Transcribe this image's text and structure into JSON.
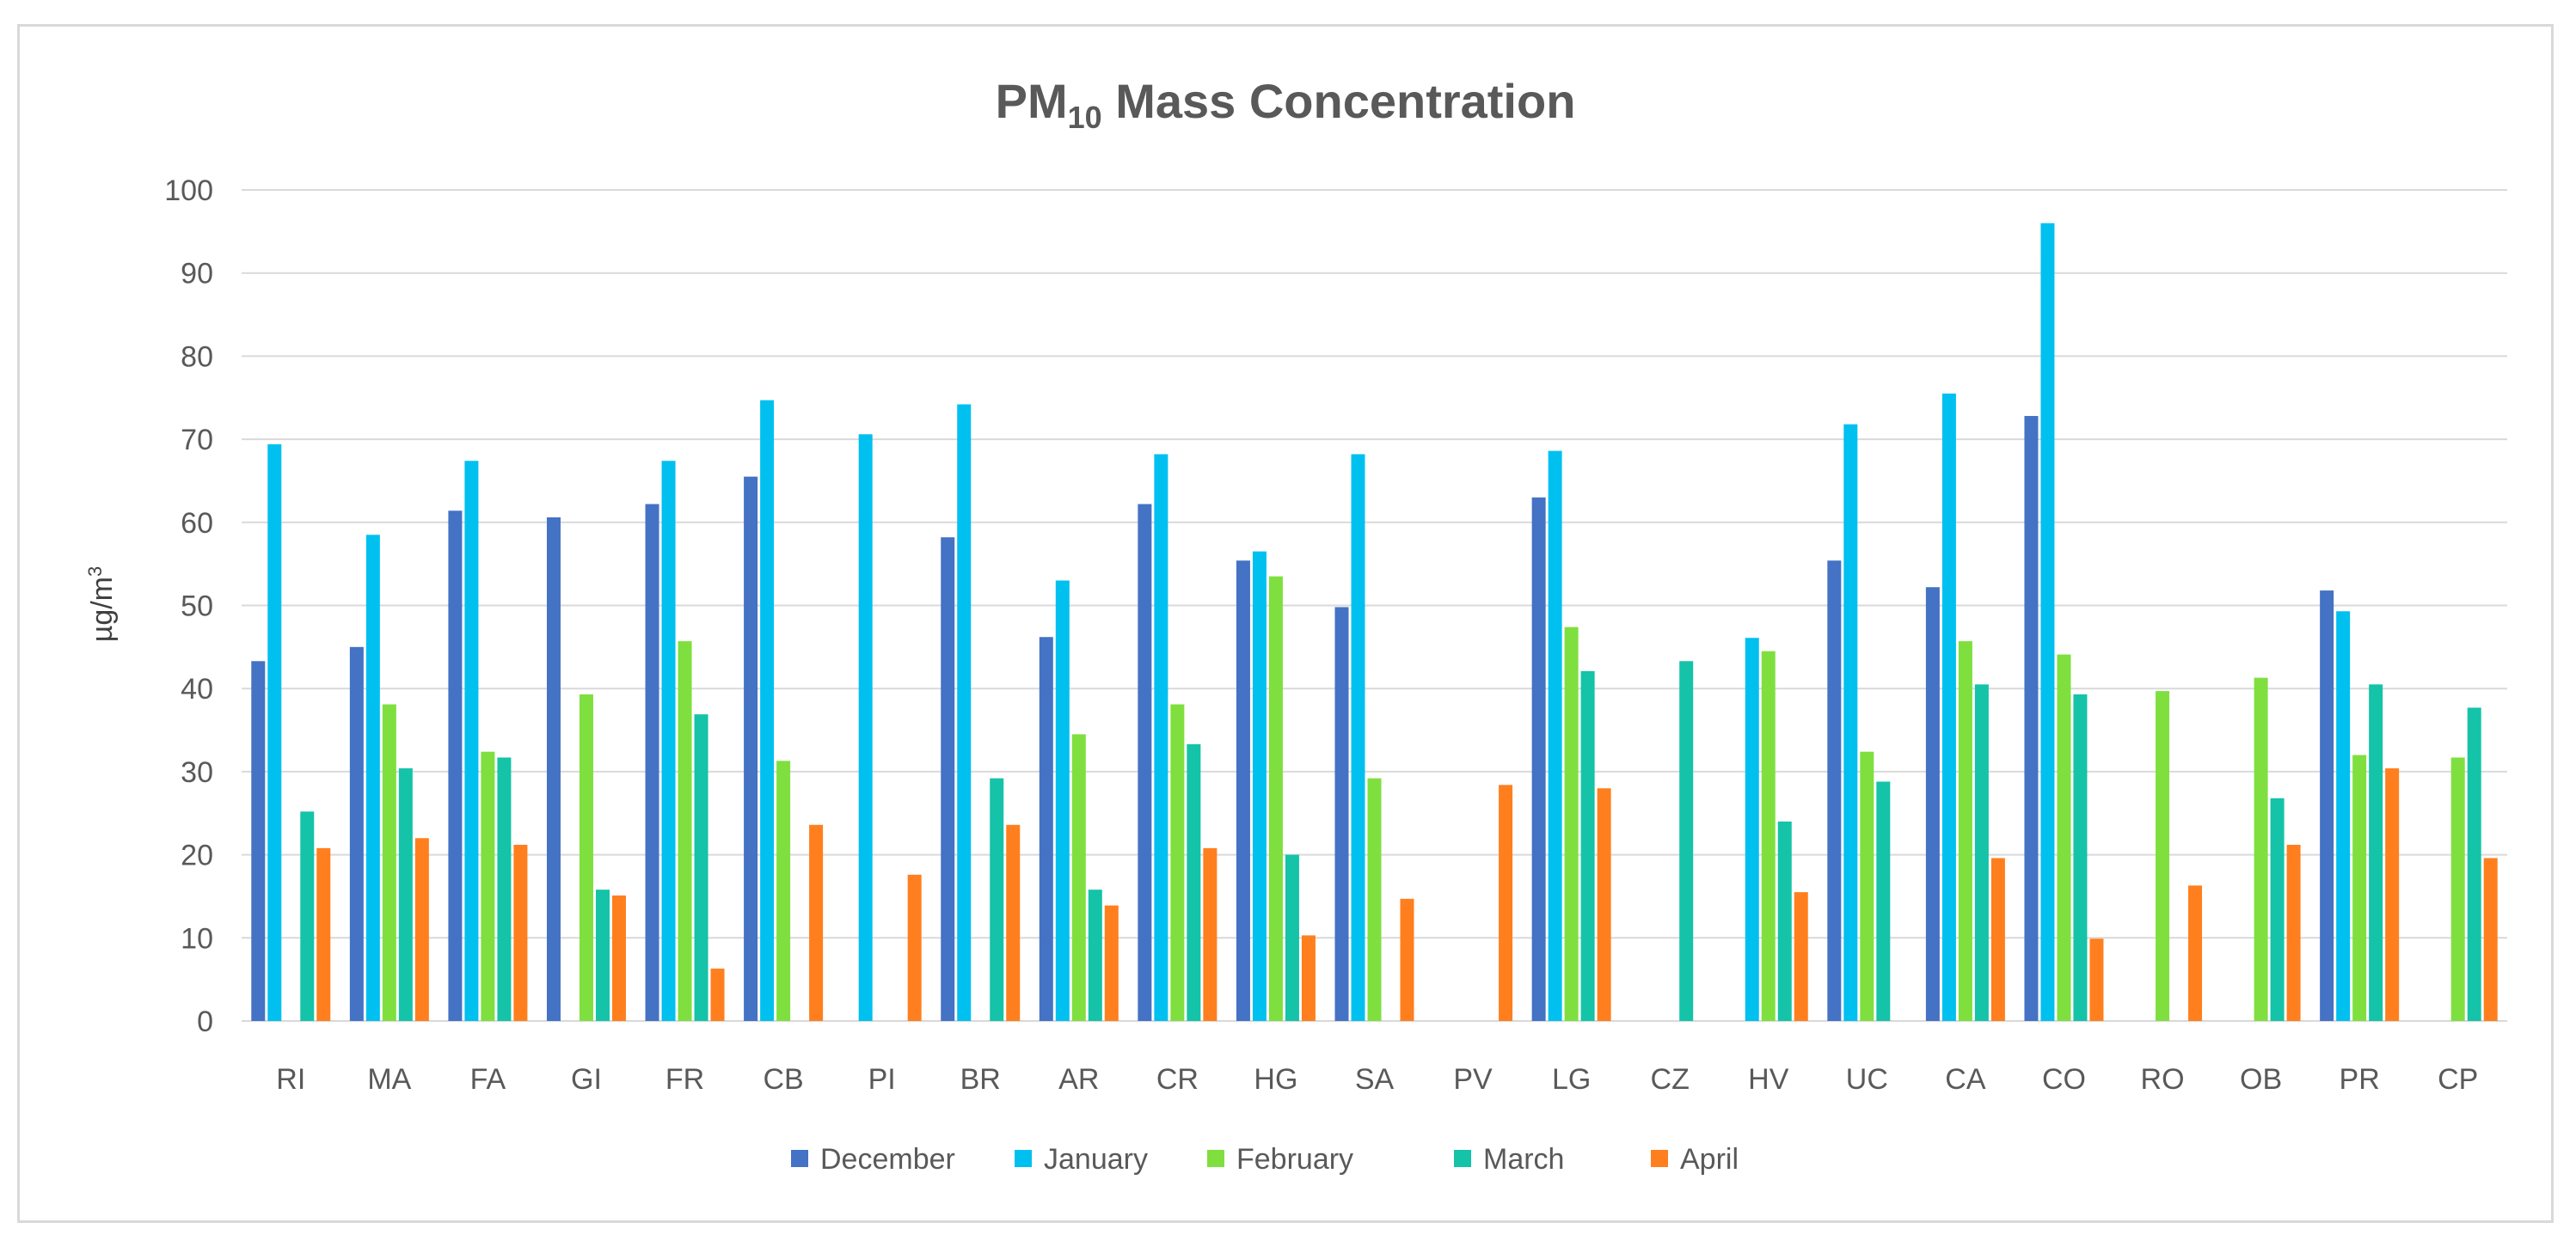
{
  "chart_data": {
    "type": "bar",
    "title": "PM",
    "title_subscript": "10",
    "title_rest": " Mass Concentration",
    "xlabel": "",
    "ylabel": "µg/m",
    "ylabel_superscript": "3",
    "ylim": [
      0,
      100
    ],
    "yticks": [
      "0",
      "10",
      "20",
      "30",
      "40",
      "50",
      "60",
      "70",
      "80",
      "90",
      "100"
    ],
    "grid": true,
    "legend_position": "bottom",
    "categories": [
      "RI",
      "MA",
      "FA",
      "GI",
      "FR",
      "CB",
      "PI",
      "BR",
      "AR",
      "CR",
      "HG",
      "SA",
      "PV",
      "LG",
      "CZ",
      "HV",
      "UC",
      "CA",
      "CO",
      "RO",
      "OB",
      "PR",
      "CP"
    ],
    "series": [
      {
        "name": "December",
        "color": "#4472c4",
        "values": [
          43.3,
          45,
          61.4,
          60.6,
          62.2,
          65.5,
          null,
          58.2,
          46.2,
          62.2,
          55.4,
          49.8,
          null,
          63,
          null,
          null,
          55.4,
          52.2,
          72.8,
          null,
          null,
          51.8,
          null
        ]
      },
      {
        "name": "January",
        "color": "#00c0f0",
        "values": [
          69.4,
          58.5,
          67.4,
          null,
          67.4,
          74.7,
          70.6,
          74.2,
          53,
          68.2,
          56.5,
          68.2,
          null,
          68.6,
          null,
          46.1,
          71.8,
          75.5,
          96,
          null,
          null,
          49.3,
          null
        ]
      },
      {
        "name": "February",
        "color": "#7fdf3f",
        "values": [
          null,
          38.1,
          32.4,
          39.3,
          45.7,
          31.3,
          null,
          null,
          34.5,
          38.1,
          53.5,
          29.2,
          null,
          47.4,
          null,
          44.5,
          32.4,
          45.7,
          44.1,
          39.7,
          41.3,
          32,
          31.7
        ]
      },
      {
        "name": "March",
        "color": "#14c3a8",
        "values": [
          25.2,
          30.4,
          31.7,
          15.8,
          36.9,
          null,
          null,
          29.2,
          15.8,
          33.3,
          20,
          null,
          null,
          42.1,
          43.3,
          24,
          28.8,
          40.5,
          39.3,
          null,
          26.8,
          40.5,
          37.7
        ]
      },
      {
        "name": "April",
        "color": "#ff7f1e",
        "values": [
          20.8,
          22,
          21.2,
          15.1,
          6.3,
          23.6,
          17.6,
          23.6,
          13.9,
          20.8,
          10.3,
          14.7,
          28.4,
          28,
          null,
          15.5,
          null,
          19.6,
          9.9,
          16.3,
          21.2,
          30.4,
          19.6
        ]
      }
    ]
  }
}
